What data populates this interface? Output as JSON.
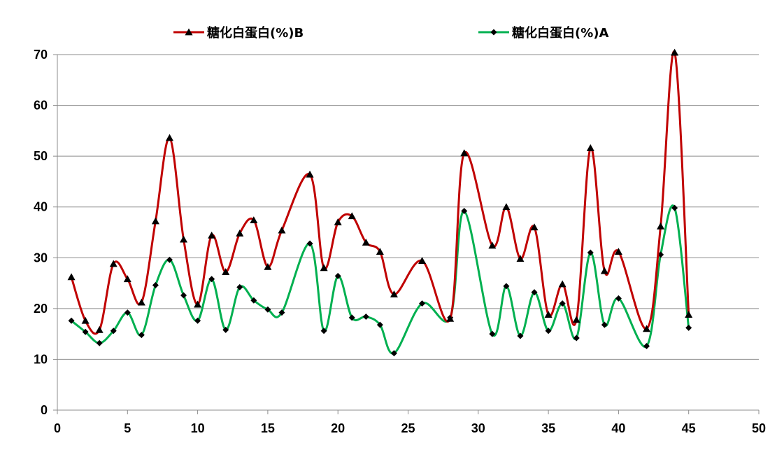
{
  "chart_data": {
    "type": "line",
    "smooth": true,
    "xlim": [
      0,
      50
    ],
    "ylim": [
      0,
      70
    ],
    "x_ticks": [
      0,
      5,
      10,
      15,
      20,
      25,
      30,
      35,
      40,
      45,
      50
    ],
    "y_ticks": [
      0,
      10,
      20,
      30,
      40,
      50,
      60,
      70
    ],
    "grid": "horizontal",
    "legend_position": "top",
    "series": [
      {
        "name": "糖化白蛋白(%)B",
        "color": "#c00000",
        "marker": "triangle",
        "points": [
          [
            1,
            26.2
          ],
          [
            2,
            17.6
          ],
          [
            3,
            15.8
          ],
          [
            4,
            28.8
          ],
          [
            5,
            25.8
          ],
          [
            6,
            21.2
          ],
          [
            7,
            37.2
          ],
          [
            8,
            53.6
          ],
          [
            9,
            33.6
          ],
          [
            10,
            20.8
          ],
          [
            11,
            34.4
          ],
          [
            12,
            27.2
          ],
          [
            13,
            34.8
          ],
          [
            14,
            37.4
          ],
          [
            15,
            28.2
          ],
          [
            16,
            35.4
          ],
          [
            18,
            46.4
          ],
          [
            19,
            28.0
          ],
          [
            20,
            37.0
          ],
          [
            21,
            38.2
          ],
          [
            22,
            33.0
          ],
          [
            23,
            31.2
          ],
          [
            24,
            22.8
          ],
          [
            26,
            29.4
          ],
          [
            28,
            18.0
          ],
          [
            29,
            50.6
          ],
          [
            31,
            32.4
          ],
          [
            32,
            40.0
          ],
          [
            33,
            29.8
          ],
          [
            34,
            36.0
          ],
          [
            35,
            18.8
          ],
          [
            36,
            24.8
          ],
          [
            37,
            17.8
          ],
          [
            38,
            51.6
          ],
          [
            39,
            27.4
          ],
          [
            40,
            31.2
          ],
          [
            42,
            16.0
          ],
          [
            43,
            36.2
          ],
          [
            44,
            70.4
          ],
          [
            45,
            18.8
          ]
        ]
      },
      {
        "name": "糖化白蛋白(%)A",
        "color": "#00b050",
        "marker": "diamond",
        "points": [
          [
            1,
            17.6
          ],
          [
            2,
            15.4
          ],
          [
            3,
            13.2
          ],
          [
            4,
            15.6
          ],
          [
            5,
            19.2
          ],
          [
            6,
            14.8
          ],
          [
            7,
            24.6
          ],
          [
            8,
            29.6
          ],
          [
            9,
            22.6
          ],
          [
            10,
            17.6
          ],
          [
            11,
            25.8
          ],
          [
            12,
            15.8
          ],
          [
            13,
            24.2
          ],
          [
            14,
            21.6
          ],
          [
            15,
            19.8
          ],
          [
            16,
            19.2
          ],
          [
            18,
            32.8
          ],
          [
            19,
            15.6
          ],
          [
            20,
            26.4
          ],
          [
            21,
            18.2
          ],
          [
            22,
            18.4
          ],
          [
            23,
            16.8
          ],
          [
            24,
            11.2
          ],
          [
            26,
            21.0
          ],
          [
            28,
            18.2
          ],
          [
            29,
            39.2
          ],
          [
            31,
            15.0
          ],
          [
            32,
            24.4
          ],
          [
            33,
            14.6
          ],
          [
            34,
            23.2
          ],
          [
            35,
            15.6
          ],
          [
            36,
            21.0
          ],
          [
            37,
            14.2
          ],
          [
            38,
            31.0
          ],
          [
            39,
            16.8
          ],
          [
            40,
            22.0
          ],
          [
            42,
            12.6
          ],
          [
            43,
            30.6
          ],
          [
            44,
            39.8
          ],
          [
            45,
            16.2
          ]
        ]
      }
    ]
  }
}
